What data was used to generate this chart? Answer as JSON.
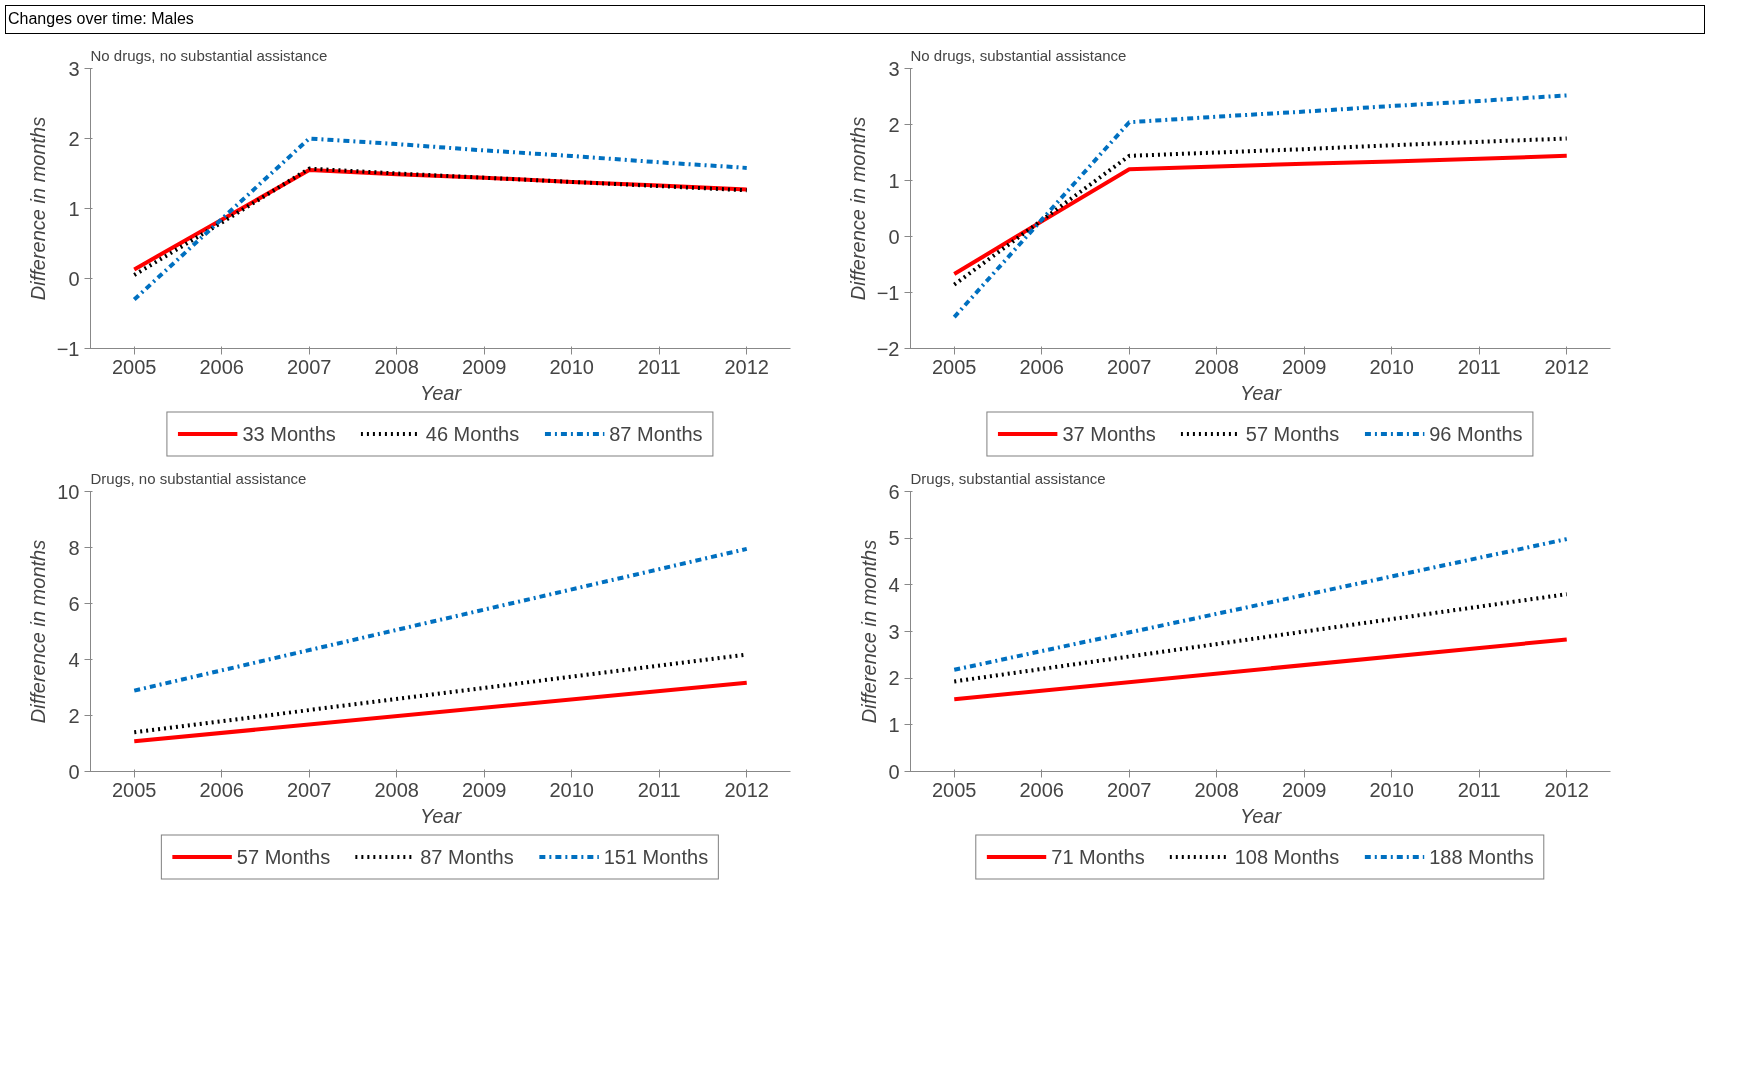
{
  "chart_data": [
    {
      "type": "line",
      "title": "No drugs, no substantial assistance",
      "annotations": [
        "Changes over time: Males"
      ],
      "xlabel": "Year",
      "ylabel": "Difference in months",
      "categories": [
        "2005",
        "2006",
        "2007",
        "2008",
        "2009",
        "2010",
        "2011",
        "2012"
      ],
      "ylim": [
        -1,
        3
      ],
      "yticks": [
        -1,
        0,
        1,
        2,
        3
      ],
      "grid": false,
      "legend": "bottom",
      "series": [
        {
          "name": "33 Months",
          "color": "#ff0000",
          "line_style": "solid",
          "values": [
            0.13,
            0.84,
            1.55,
            1.49,
            1.44,
            1.38,
            1.33,
            1.27
          ]
        },
        {
          "name": "46 Months",
          "color": "#000000",
          "line_style": "dotted",
          "values": [
            0.05,
            0.8,
            1.57,
            1.5,
            1.44,
            1.38,
            1.32,
            1.26
          ]
        },
        {
          "name": "87 Months",
          "color": "#0070c0",
          "line_style": "dashdot",
          "values": [
            -0.3,
            0.85,
            2.0,
            1.92,
            1.83,
            1.75,
            1.66,
            1.58
          ]
        }
      ]
    },
    {
      "type": "line",
      "title": "No drugs, substantial assistance",
      "xlabel": "Year",
      "ylabel": "Difference in months",
      "categories": [
        "2005",
        "2006",
        "2007",
        "2008",
        "2009",
        "2010",
        "2011",
        "2012"
      ],
      "ylim": [
        -2,
        3
      ],
      "yticks": [
        -2,
        -1,
        0,
        1,
        2,
        3
      ],
      "grid": false,
      "legend": "bottom",
      "series": [
        {
          "name": "37 Months",
          "color": "#ff0000",
          "line_style": "solid",
          "values": [
            -0.67,
            0.27,
            1.2,
            1.25,
            1.3,
            1.34,
            1.39,
            1.44
          ]
        },
        {
          "name": "57 Months",
          "color": "#000000",
          "line_style": "dotted",
          "values": [
            -0.86,
            0.29,
            1.44,
            1.5,
            1.56,
            1.63,
            1.69,
            1.75
          ]
        },
        {
          "name": "96 Months",
          "color": "#0070c0",
          "line_style": "dashdot",
          "values": [
            -1.44,
            0.3,
            2.04,
            2.14,
            2.23,
            2.33,
            2.42,
            2.52
          ]
        }
      ]
    },
    {
      "type": "line",
      "title": "Drugs, no substantial assistance",
      "xlabel": "Year",
      "ylabel": "Difference in months",
      "categories": [
        "2005",
        "2006",
        "2007",
        "2008",
        "2009",
        "2010",
        "2011",
        "2012"
      ],
      "ylim": [
        0,
        10
      ],
      "yticks": [
        0,
        2,
        4,
        6,
        8,
        10
      ],
      "grid": false,
      "legend": "bottom",
      "series": [
        {
          "name": "57 Months",
          "color": "#ff0000",
          "line_style": "solid",
          "values": [
            1.08,
            null,
            null,
            null,
            null,
            null,
            null,
            3.17
          ]
        },
        {
          "name": "87 Months",
          "color": "#000000",
          "line_style": "dotted",
          "values": [
            1.4,
            null,
            null,
            null,
            null,
            null,
            null,
            4.18
          ]
        },
        {
          "name": "151 Months",
          "color": "#0070c0",
          "line_style": "dashdot",
          "values": [
            2.89,
            null,
            null,
            null,
            null,
            null,
            null,
            7.95
          ]
        }
      ]
    },
    {
      "type": "line",
      "title": "Drugs, substantial assistance",
      "xlabel": "Year",
      "ylabel": "Difference in months",
      "categories": [
        "2005",
        "2006",
        "2007",
        "2008",
        "2009",
        "2010",
        "2011",
        "2012"
      ],
      "ylim": [
        0,
        6
      ],
      "yticks": [
        0,
        1,
        2,
        3,
        4,
        5,
        6
      ],
      "grid": false,
      "legend": "bottom",
      "series": [
        {
          "name": "71 Months",
          "color": "#ff0000",
          "line_style": "solid",
          "values": [
            1.55,
            null,
            null,
            null,
            null,
            null,
            null,
            2.83
          ]
        },
        {
          "name": "108 Months",
          "color": "#000000",
          "line_style": "dotted",
          "values": [
            1.93,
            null,
            null,
            null,
            null,
            null,
            null,
            3.8
          ]
        },
        {
          "name": "188 Months",
          "color": "#0070c0",
          "line_style": "dashdot",
          "values": [
            2.18,
            null,
            null,
            null,
            null,
            null,
            null,
            4.98
          ]
        }
      ]
    }
  ]
}
